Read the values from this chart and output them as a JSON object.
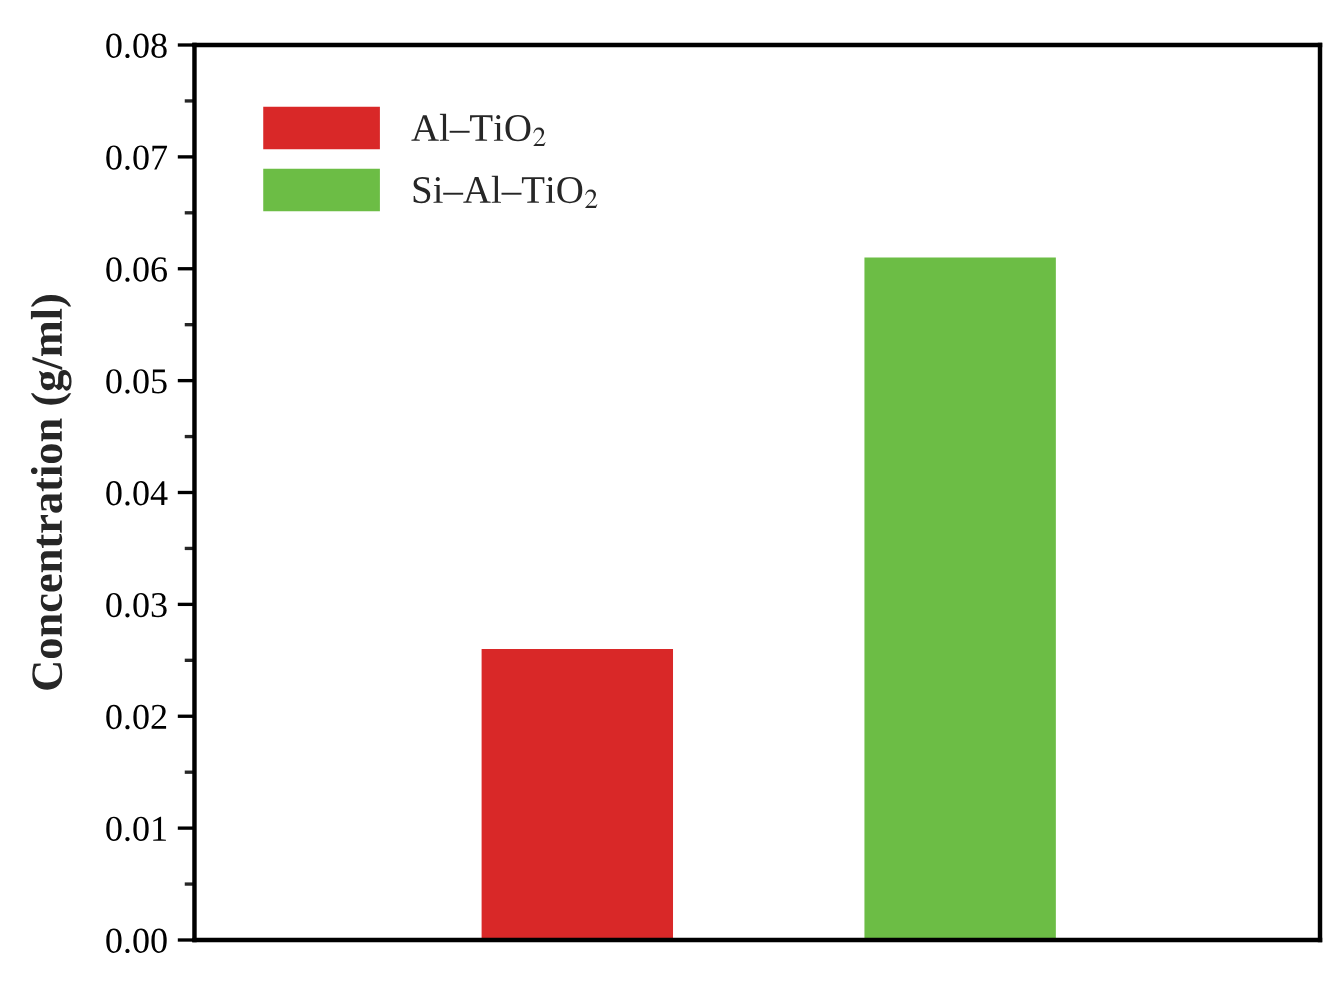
{
  "chart_data": {
    "type": "bar",
    "ylabel": "Concentration (g/ml)",
    "categories": [
      null,
      null
    ],
    "series": [
      {
        "name": "Al–TiO$_{2}$",
        "color": "#d92828",
        "values": [
          0.026,
          null
        ]
      },
      {
        "name": "Si–Al–TiO$_{2}$",
        "color": "#6cbd45",
        "values": [
          null,
          0.061
        ]
      }
    ],
    "ylim": [
      0,
      0.08
    ],
    "yticks": [
      "0.00",
      0.01,
      0.02,
      0.03,
      0.04,
      0.05,
      0.06,
      0.07,
      0.08
    ],
    "tick_labels": "y",
    "grid": false,
    "legend": "top left"
  }
}
